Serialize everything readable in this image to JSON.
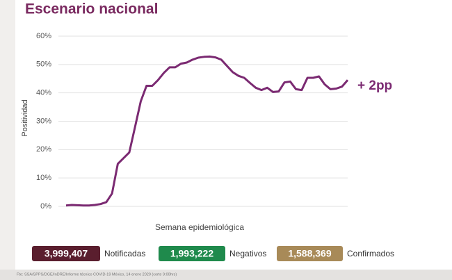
{
  "chart_data": {
    "type": "line",
    "title": "Escenario nacional",
    "title_color": "#7a2a60",
    "y_label": "Positividad",
    "x_label": "Semana epidemiológica",
    "annotation": "+ 2pp",
    "categories": [
      null,
      null,
      null,
      null,
      null,
      null,
      null,
      null,
      null,
      null,
      null,
      null,
      null,
      null,
      null,
      null,
      null,
      null,
      null,
      null,
      null,
      null,
      null,
      null,
      null,
      null,
      null,
      null,
      null,
      null,
      null,
      null,
      null,
      null,
      null,
      null,
      null,
      null,
      null,
      null,
      null,
      null,
      null,
      null,
      null,
      null,
      null,
      null,
      null,
      null
    ],
    "series": [
      {
        "name": "Positividad",
        "color": "#7b2a72",
        "values": [
          0.3,
          0.5,
          0.4,
          0.3,
          0.3,
          0.5,
          0.8,
          1.5,
          4.5,
          15,
          17,
          19,
          28,
          37,
          42.5,
          42.5,
          44.5,
          47,
          49,
          49,
          50.3,
          50.7,
          51.7,
          52.4,
          52.7,
          52.8,
          52.5,
          51.7,
          49.5,
          47.3,
          46,
          45.3,
          43.5,
          41.8,
          41,
          41.8,
          40.3,
          40.5,
          43.7,
          44,
          41.3,
          41,
          45.3,
          45.3,
          45.8,
          43,
          41.3,
          41.5,
          42.2,
          44.5
        ]
      }
    ],
    "ylim": [
      0,
      60
    ],
    "yticks": [
      {
        "value": 0,
        "label": "0%"
      },
      {
        "value": 10,
        "label": "10%"
      },
      {
        "value": 20,
        "label": "20%"
      },
      {
        "value": 30,
        "label": "30%"
      },
      {
        "value": 40,
        "label": "40%"
      },
      {
        "value": 50,
        "label": "50%"
      },
      {
        "value": 60,
        "label": "60%"
      }
    ],
    "grid": true
  },
  "summary": [
    {
      "value": "3,999,407",
      "label": "Notificadas",
      "color": "#5a1e2e"
    },
    {
      "value": "1,993,222",
      "label": "Negativos",
      "color": "#1f8a4c"
    },
    {
      "value": "1,588,369",
      "label": "Confirmados",
      "color": "#a88a58"
    }
  ],
  "source": "Fte: SSA/SPPS/DGE/InDRE/Informe técnico COVID-19 México, 14 enero 2020 (corte 9:00hrs)"
}
